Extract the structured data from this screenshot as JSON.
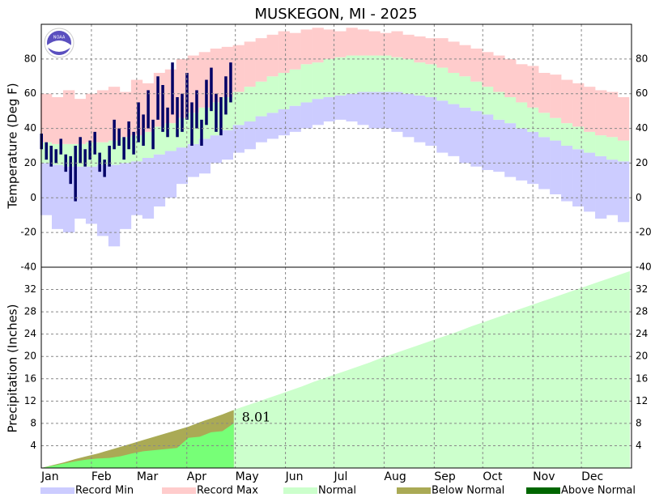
{
  "title": "MUSKEGON, MI - 2025",
  "logo_text": "NOAA",
  "legend": [
    {
      "name": "Record Min",
      "color": "#ccccff"
    },
    {
      "name": "Record Max",
      "color": "#ffcccc"
    },
    {
      "name": "Normal",
      "color": "#ccffcc"
    },
    {
      "name": "Below Normal",
      "color": "#aaaa55"
    },
    {
      "name": "Above Normal",
      "color": "#006600"
    }
  ],
  "chart_data": [
    {
      "type": "temperature",
      "ylabel": "Temperature (Deg F)",
      "xlim": [
        0,
        365
      ],
      "ylim": [
        -40,
        100
      ],
      "yticks": [
        -40,
        -20,
        0,
        20,
        40,
        60,
        80
      ],
      "grid": true,
      "x": [
        3,
        10,
        17,
        24,
        31,
        38,
        45,
        52,
        59,
        66,
        73,
        80,
        87,
        94,
        101,
        108,
        115,
        122,
        129,
        136,
        143,
        150,
        157,
        164,
        171,
        178,
        185,
        192,
        199,
        206,
        213,
        220,
        227,
        234,
        241,
        248,
        255,
        262,
        269,
        276,
        283,
        290,
        297,
        304,
        311,
        318,
        325,
        332,
        339,
        346,
        353,
        360
      ],
      "record_max": [
        60,
        58,
        62,
        57,
        60,
        62,
        64,
        61,
        68,
        66,
        72,
        74,
        80,
        82,
        84,
        86,
        87,
        88,
        90,
        92,
        94,
        96,
        95,
        97,
        98,
        97,
        96,
        98,
        97,
        96,
        95,
        96,
        94,
        93,
        92,
        92,
        90,
        88,
        86,
        84,
        82,
        80,
        77,
        76,
        72,
        71,
        68,
        66,
        64,
        62,
        61,
        58
      ],
      "normal_high": [
        32,
        31,
        31,
        31,
        32,
        32,
        33,
        35,
        36,
        38,
        41,
        43,
        46,
        49,
        52,
        55,
        58,
        61,
        64,
        67,
        70,
        72,
        74,
        77,
        78,
        80,
        81,
        82,
        82,
        82,
        82,
        81,
        80,
        78,
        77,
        75,
        72,
        70,
        67,
        64,
        61,
        58,
        55,
        52,
        49,
        46,
        43,
        41,
        38,
        36,
        35,
        33
      ],
      "normal_low": [
        20,
        19,
        18,
        18,
        18,
        19,
        19,
        20,
        21,
        23,
        25,
        27,
        29,
        31,
        34,
        36,
        39,
        42,
        44,
        47,
        49,
        51,
        53,
        55,
        57,
        58,
        59,
        60,
        61,
        61,
        61,
        61,
        60,
        59,
        58,
        56,
        54,
        52,
        50,
        48,
        45,
        43,
        40,
        38,
        35,
        33,
        30,
        28,
        26,
        24,
        22,
        21
      ],
      "record_min": [
        -10,
        -18,
        -20,
        -12,
        -15,
        -22,
        -28,
        -18,
        -10,
        -12,
        -5,
        0,
        8,
        12,
        14,
        20,
        22,
        26,
        28,
        32,
        34,
        36,
        38,
        40,
        42,
        44,
        45,
        44,
        42,
        40,
        40,
        38,
        35,
        32,
        30,
        26,
        24,
        20,
        18,
        16,
        15,
        12,
        10,
        8,
        5,
        2,
        -2,
        -5,
        -8,
        -12,
        -10,
        -14
      ],
      "observed": {
        "color": "#000066",
        "x": [
          0,
          3,
          6,
          9,
          12,
          15,
          18,
          21,
          24,
          27,
          30,
          33,
          36,
          39,
          42,
          45,
          48,
          51,
          54,
          57,
          60,
          63,
          66,
          69,
          72,
          75,
          78,
          81,
          84,
          87,
          90,
          93,
          96,
          99,
          102,
          105,
          108,
          111,
          114,
          117
        ],
        "high": [
          37,
          32,
          30,
          28,
          34,
          25,
          24,
          30,
          35,
          28,
          33,
          38,
          26,
          22,
          30,
          45,
          40,
          35,
          44,
          38,
          55,
          48,
          62,
          45,
          70,
          65,
          52,
          78,
          58,
          60,
          72,
          55,
          62,
          45,
          68,
          75,
          60,
          58,
          70,
          78
        ],
        "low": [
          28,
          22,
          18,
          20,
          25,
          15,
          8,
          -2,
          20,
          18,
          22,
          25,
          15,
          12,
          18,
          28,
          30,
          22,
          28,
          25,
          32,
          30,
          40,
          28,
          45,
          38,
          35,
          48,
          35,
          38,
          45,
          30,
          40,
          30,
          42,
          50,
          38,
          36,
          48,
          55
        ]
      }
    },
    {
      "type": "precipitation",
      "ylabel": "Precipitation (Inches)",
      "xlim": [
        0,
        365
      ],
      "ylim": [
        0,
        36
      ],
      "yticks": [
        4,
        8,
        12,
        16,
        20,
        24,
        28,
        32
      ],
      "xticks": [
        {
          "value": 0,
          "label": "Jan"
        },
        {
          "value": 31,
          "label": "Feb"
        },
        {
          "value": 59,
          "label": "Mar"
        },
        {
          "value": 90,
          "label": "Apr"
        },
        {
          "value": 120,
          "label": "May"
        },
        {
          "value": 151,
          "label": "Jun"
        },
        {
          "value": 181,
          "label": "Jul"
        },
        {
          "value": 212,
          "label": "Aug"
        },
        {
          "value": 243,
          "label": "Sep"
        },
        {
          "value": 273,
          "label": "Oct"
        },
        {
          "value": 304,
          "label": "Nov"
        },
        {
          "value": 334,
          "label": "Dec"
        }
      ],
      "grid": true,
      "x": [
        0,
        7,
        14,
        21,
        28,
        35,
        42,
        49,
        56,
        63,
        70,
        77,
        84,
        91,
        98,
        105,
        112,
        119,
        126,
        133,
        140,
        147,
        154,
        161,
        168,
        175,
        182,
        189,
        196,
        203,
        210,
        217,
        224,
        231,
        238,
        245,
        252,
        259,
        266,
        273,
        280,
        287,
        294,
        301,
        308,
        315,
        322,
        329,
        336,
        343,
        350,
        357,
        364
      ],
      "normal": [
        0,
        0.5,
        1,
        1.6,
        2.1,
        2.6,
        3.2,
        3.8,
        4.4,
        5,
        5.6,
        6.2,
        6.8,
        7.4,
        8.2,
        8.9,
        9.6,
        10.4,
        11.1,
        11.8,
        12.5,
        13.2,
        13.9,
        14.6,
        15.4,
        16.1,
        16.8,
        17.5,
        18.2,
        18.9,
        19.7,
        20.4,
        21.1,
        21.8,
        22.5,
        23.2,
        23.9,
        24.6,
        25.4,
        26.1,
        26.8,
        27.5,
        28.3,
        29,
        29.7,
        30.4,
        31.1,
        31.8,
        32.5,
        33.2,
        33.9,
        34.6,
        35.3
      ],
      "observed": {
        "color": "#77ff77",
        "x": [
          0,
          7,
          14,
          21,
          28,
          35,
          42,
          49,
          56,
          63,
          70,
          77,
          84,
          91,
          98,
          105,
          112,
          119
        ],
        "values": [
          0,
          0.4,
          0.8,
          1.2,
          1.5,
          1.7,
          1.8,
          2.1,
          2.6,
          3,
          3.2,
          3.4,
          3.6,
          5.4,
          5.6,
          6.4,
          6.6,
          8.01
        ]
      }
    }
  ]
}
